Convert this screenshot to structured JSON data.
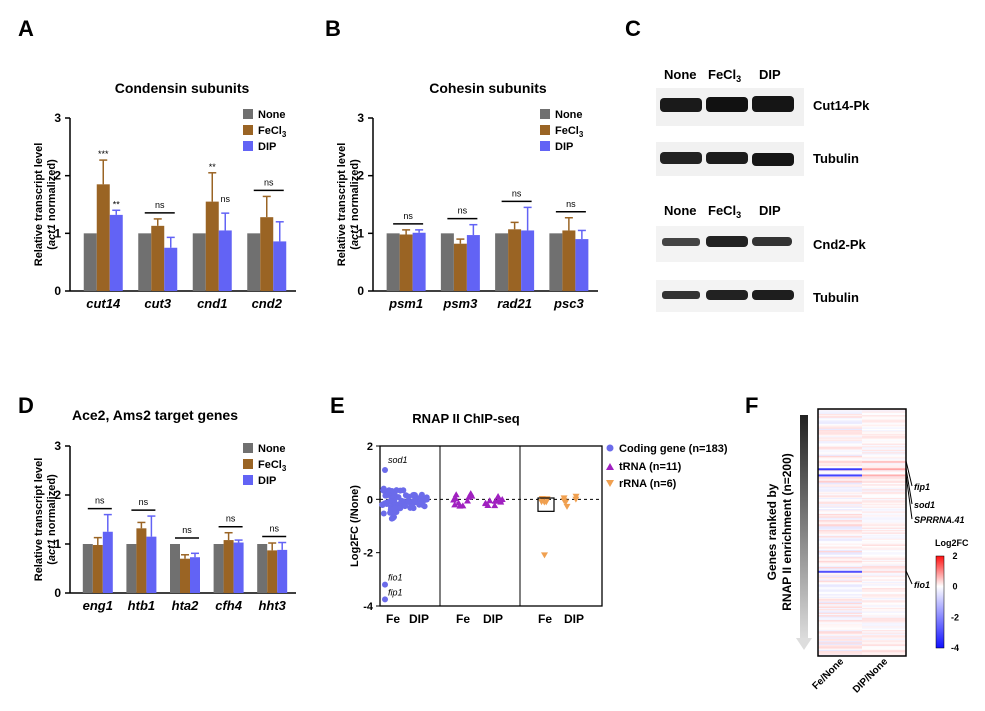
{
  "figure": {
    "panel_letters": [
      "A",
      "B",
      "C",
      "D",
      "E",
      "F"
    ]
  },
  "colors": {
    "none": "#707070",
    "fecl3": "#9a6424",
    "dip": "#6263f5",
    "coding": "#6b6bea",
    "trna": "#a020c0",
    "rrna": "#f0a050",
    "heat_neg": "#2020d0",
    "heat_pos": "#e02020"
  },
  "chart_data": [
    {
      "id": "A",
      "type": "bar",
      "title": "Condensin subunits",
      "ylabel_line1": "Relative transcript level",
      "ylabel_line2_italic": "act1",
      "ylabel_line2_rest": " normalized)",
      "ylabel_line2_open": "(",
      "ylim": [
        0,
        3
      ],
      "yticks": [
        "0",
        "1",
        "2",
        "3"
      ],
      "categories": [
        "cut14",
        "cut3",
        "cnd1",
        "cnd2"
      ],
      "legend": [
        "None",
        "FeCl",
        "DIP"
      ],
      "legend_sub": "3",
      "series": [
        {
          "name": "None",
          "values": [
            1,
            1,
            1,
            1
          ],
          "errors": [
            0,
            0,
            0,
            0
          ]
        },
        {
          "name": "FeCl3",
          "values": [
            1.85,
            1.13,
            1.55,
            1.28
          ],
          "errors": [
            0.42,
            0.12,
            0.5,
            0.36
          ]
        },
        {
          "name": "DIP",
          "values": [
            1.32,
            0.75,
            1.05,
            0.86
          ],
          "errors": [
            0.08,
            0.18,
            0.3,
            0.34
          ]
        }
      ],
      "annotations": [
        {
          "text": "***",
          "cat": 0,
          "series": 1
        },
        {
          "text": "**",
          "cat": 0,
          "series": 2
        },
        {
          "text": "**",
          "cat": 2,
          "series": 1
        }
      ],
      "ns": [
        {
          "cat": 1,
          "text": "ns"
        },
        {
          "cat": 2,
          "text": "ns",
          "series_only": 2
        },
        {
          "cat": 3,
          "text": "ns"
        }
      ]
    },
    {
      "id": "B",
      "type": "bar",
      "title": "Cohesin subunits",
      "ylabel_line1": "Relative transcript level",
      "ylabel_line2_italic": "act1",
      "ylabel_line2_rest": " normalized)",
      "ylabel_line2_open": "(",
      "ylim": [
        0,
        3
      ],
      "yticks": [
        "0",
        "1",
        "2",
        "3"
      ],
      "categories": [
        "psm1",
        "psm3",
        "rad21",
        "psc3"
      ],
      "legend": [
        "None",
        "FeCl",
        "DIP"
      ],
      "legend_sub": "3",
      "series": [
        {
          "name": "None",
          "values": [
            1,
            1,
            1,
            1
          ],
          "errors": [
            0,
            0,
            0,
            0
          ]
        },
        {
          "name": "FeCl3",
          "values": [
            0.98,
            0.82,
            1.07,
            1.05
          ],
          "errors": [
            0.08,
            0.08,
            0.12,
            0.22
          ]
        },
        {
          "name": "DIP",
          "values": [
            1.01,
            0.97,
            1.05,
            0.9
          ],
          "errors": [
            0.05,
            0.18,
            0.4,
            0.15
          ]
        }
      ],
      "annotations": [],
      "ns": [
        {
          "cat": 0,
          "text": "ns"
        },
        {
          "cat": 1,
          "text": "ns"
        },
        {
          "cat": 2,
          "text": "ns"
        },
        {
          "cat": 3,
          "text": "ns"
        }
      ]
    },
    {
      "id": "D",
      "type": "bar",
      "title": "Ace2, Ams2 target genes",
      "ylabel_line1": "Relative transcript level",
      "ylabel_line2_italic": "act1",
      "ylabel_line2_rest": " normalized)",
      "ylabel_line2_open": "(",
      "ylim": [
        0,
        3
      ],
      "yticks": [
        "0",
        "1",
        "2",
        "3"
      ],
      "categories": [
        "eng1",
        "htb1",
        "hta2",
        "cfh4",
        "hht3"
      ],
      "legend": [
        "None",
        "FeCl",
        "DIP"
      ],
      "legend_sub": "3",
      "series": [
        {
          "name": "None",
          "values": [
            1,
            1,
            1,
            1,
            1
          ],
          "errors": [
            0,
            0,
            0,
            0,
            0
          ]
        },
        {
          "name": "FeCl3",
          "values": [
            0.98,
            1.32,
            0.7,
            1.08,
            0.87
          ],
          "errors": [
            0.15,
            0.12,
            0.08,
            0.15,
            0.15
          ]
        },
        {
          "name": "DIP",
          "values": [
            1.25,
            1.15,
            0.73,
            1.03,
            0.88
          ],
          "errors": [
            0.35,
            0.42,
            0.08,
            0.05,
            0.15
          ]
        }
      ],
      "annotations": [],
      "ns": [
        {
          "cat": 0,
          "text": "ns"
        },
        {
          "cat": 1,
          "text": "ns"
        },
        {
          "cat": 2,
          "text": "ns"
        },
        {
          "cat": 3,
          "text": "ns"
        },
        {
          "cat": 4,
          "text": "ns"
        }
      ]
    },
    {
      "id": "E",
      "type": "scatter",
      "title": "RNAP II ChIP-seq",
      "ylabel": "Log2FC (/None)",
      "ylim": [
        -4,
        2
      ],
      "yticks": [
        "2",
        "0",
        "-2",
        "-4"
      ],
      "group_labels": [
        "Fe",
        "DIP",
        "Fe",
        "DIP",
        "Fe",
        "DIP"
      ],
      "legend": [
        "Coding gene (n=183)",
        "tRNA (n=11)",
        "rRNA (n=6)"
      ],
      "point_labels": [
        {
          "text": "sod1",
          "group": 0,
          "y": 1.1
        },
        {
          "text": "fio1",
          "group": 0,
          "y": -3.2
        },
        {
          "text": "fip1",
          "group": 0,
          "y": -3.75
        }
      ],
      "highlight_points": [
        {
          "group": 0,
          "y": 1.1
        },
        {
          "group": 0,
          "y": -3.2
        },
        {
          "group": 0,
          "y": -3.75
        }
      ]
    },
    {
      "id": "F",
      "type": "heatmap",
      "ylabel_line1": "Genes ranked by",
      "ylabel_line2": "RNAP II enrichment (n=200)",
      "columns": [
        "Fe/None",
        "DIP/None"
      ],
      "colorbar_title": "Log2FC",
      "colorbar_ticks": [
        "2",
        "0",
        "-2",
        "-4"
      ],
      "colorbar_range": [
        -4,
        2
      ],
      "gene_labels": [
        "fip1",
        "sod1",
        "SPRRNA.41",
        "fio1"
      ],
      "strong_rows": [
        {
          "row": 48,
          "fe": -3.6,
          "dip": 0.9
        },
        {
          "row": 53,
          "fe": -3.4,
          "dip": 0.8
        },
        {
          "row": 131,
          "fe": -3.2,
          "dip": 0.4
        },
        {
          "row": 42,
          "fe": 0.4,
          "dip": 0.6
        },
        {
          "row": 58,
          "fe": 0.5,
          "dip": 0.3
        }
      ]
    }
  ],
  "western": {
    "id": "C",
    "lanes": [
      "None",
      "FeCl",
      "DIP"
    ],
    "lanes_sub": "3",
    "lanes2": [
      "None",
      "FeCl",
      "DIP"
    ],
    "blots": [
      "Cut14-Pk",
      "Tubulin",
      "Cnd2-Pk",
      "Tubulin"
    ]
  }
}
